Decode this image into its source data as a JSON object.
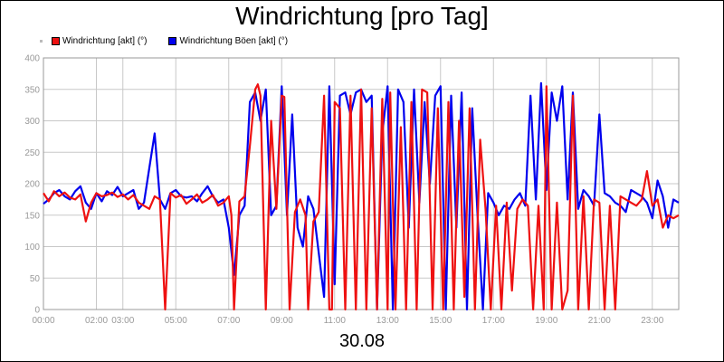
{
  "chart_data": {
    "type": "line",
    "title": "Windrichtung [pro Tag]",
    "xlabel": "30.08",
    "ylabel": "",
    "ylim": [
      0,
      400
    ],
    "yticks": [
      0,
      50,
      100,
      150,
      200,
      250,
      300,
      350,
      400
    ],
    "xlim": [
      0,
      24
    ],
    "xticks": [
      0,
      2,
      3,
      5,
      7,
      9,
      11,
      13,
      15,
      17,
      19,
      21,
      23
    ],
    "xtick_labels": [
      "00:00",
      "02:00",
      "03:00",
      "05:00",
      "07:00",
      "09:00",
      "11:00",
      "13:00",
      "15:00",
      "17:00",
      "19:00",
      "21:00",
      "23:00"
    ],
    "grid": true,
    "legend_position": "top-left",
    "series": [
      {
        "name": "Windrichtung [akt] (°)",
        "color": "#ee1111",
        "x": [
          0,
          0.2,
          0.4,
          0.6,
          0.8,
          1.0,
          1.2,
          1.4,
          1.6,
          1.8,
          2.0,
          2.2,
          2.4,
          2.6,
          2.8,
          3.0,
          3.2,
          3.4,
          3.6,
          3.8,
          4.0,
          4.2,
          4.4,
          4.6,
          4.8,
          5.0,
          5.2,
          5.4,
          5.6,
          5.8,
          6.0,
          6.2,
          6.4,
          6.6,
          6.8,
          7.0,
          7.1,
          7.2,
          7.4,
          7.6,
          7.8,
          8.0,
          8.1,
          8.2,
          8.4,
          8.6,
          8.8,
          9.0,
          9.1,
          9.3,
          9.5,
          9.7,
          9.9,
          10.0,
          10.2,
          10.4,
          10.6,
          10.8,
          10.9,
          11.0,
          11.2,
          11.4,
          11.6,
          11.8,
          12.0,
          12.2,
          12.4,
          12.6,
          12.8,
          13.0,
          13.1,
          13.3,
          13.5,
          13.7,
          13.9,
          14.1,
          14.3,
          14.5,
          14.7,
          14.9,
          15.1,
          15.3,
          15.5,
          15.7,
          15.9,
          16.1,
          16.3,
          16.5,
          16.7,
          16.9,
          17.1,
          17.3,
          17.5,
          17.7,
          17.9,
          18.1,
          18.3,
          18.5,
          18.7,
          18.9,
          19.0,
          19.2,
          19.4,
          19.6,
          19.8,
          20.0,
          20.2,
          20.4,
          20.6,
          20.8,
          21.0,
          21.2,
          21.4,
          21.6,
          21.8,
          22.0,
          22.2,
          22.4,
          22.6,
          22.8,
          23.0,
          23.2,
          23.4,
          23.6,
          23.8,
          24.0
        ],
        "y": [
          185,
          172,
          188,
          180,
          186,
          178,
          175,
          183,
          140,
          170,
          185,
          180,
          182,
          186,
          179,
          183,
          175,
          182,
          170,
          165,
          160,
          180,
          175,
          0,
          185,
          178,
          182,
          168,
          175,
          183,
          170,
          175,
          182,
          165,
          170,
          180,
          150,
          0,
          172,
          180,
          260,
          350,
          358,
          340,
          0,
          300,
          160,
          340,
          338,
          0,
          155,
          175,
          150,
          0,
          140,
          155,
          340,
          0,
          0,
          330,
          320,
          0,
          340,
          0,
          350,
          0,
          320,
          0,
          335,
          0,
          345,
          0,
          290,
          0,
          330,
          0,
          350,
          345,
          0,
          320,
          0,
          330,
          0,
          300,
          20,
          320,
          0,
          270,
          160,
          0,
          165,
          0,
          170,
          30,
          160,
          175,
          165,
          0,
          165,
          0,
          355,
          0,
          170,
          0,
          30,
          340,
          0,
          180,
          0,
          175,
          170,
          0,
          165,
          0,
          180,
          175,
          170,
          165,
          175,
          220,
          165,
          175,
          130,
          150,
          145,
          150
        ]
      },
      {
        "name": "Windrichtung Böen [akt] (°)",
        "color": "#0000ee",
        "x": [
          0,
          0.2,
          0.4,
          0.6,
          0.8,
          1.0,
          1.2,
          1.4,
          1.6,
          1.8,
          2.0,
          2.2,
          2.4,
          2.6,
          2.8,
          3.0,
          3.2,
          3.4,
          3.6,
          3.8,
          4.0,
          4.2,
          4.4,
          4.6,
          4.8,
          5.0,
          5.2,
          5.4,
          5.6,
          5.8,
          6.0,
          6.2,
          6.4,
          6.6,
          6.8,
          7.0,
          7.2,
          7.4,
          7.6,
          7.8,
          8.0,
          8.2,
          8.4,
          8.6,
          8.8,
          9.0,
          9.2,
          9.4,
          9.6,
          9.8,
          10.0,
          10.2,
          10.4,
          10.6,
          10.8,
          11.0,
          11.2,
          11.4,
          11.6,
          11.8,
          12.0,
          12.2,
          12.4,
          12.6,
          12.8,
          13.0,
          13.2,
          13.4,
          13.6,
          13.8,
          14.0,
          14.2,
          14.4,
          14.6,
          14.8,
          15.0,
          15.2,
          15.4,
          15.6,
          15.8,
          16.0,
          16.2,
          16.4,
          16.6,
          16.8,
          17.0,
          17.2,
          17.4,
          17.6,
          17.8,
          18.0,
          18.2,
          18.4,
          18.6,
          18.8,
          19.0,
          19.2,
          19.4,
          19.6,
          19.8,
          20.0,
          20.2,
          20.4,
          20.6,
          20.8,
          21.0,
          21.2,
          21.4,
          21.6,
          21.8,
          22.0,
          22.2,
          22.4,
          22.6,
          22.8,
          23.0,
          23.2,
          23.4,
          23.6,
          23.8,
          24.0
        ],
        "y": [
          168,
          175,
          185,
          190,
          180,
          175,
          188,
          196,
          170,
          160,
          185,
          172,
          188,
          182,
          195,
          180,
          185,
          190,
          160,
          170,
          225,
          280,
          175,
          160,
          185,
          190,
          180,
          178,
          180,
          172,
          185,
          196,
          180,
          170,
          175,
          130,
          55,
          150,
          165,
          330,
          345,
          300,
          350,
          150,
          165,
          355,
          150,
          310,
          130,
          100,
          180,
          160,
          90,
          20,
          355,
          40,
          340,
          345,
          310,
          345,
          350,
          330,
          340,
          0,
          280,
          355,
          0,
          350,
          330,
          130,
          350,
          170,
          330,
          200,
          340,
          355,
          0,
          340,
          130,
          345,
          0,
          320,
          150,
          0,
          185,
          170,
          150,
          165,
          160,
          175,
          185,
          165,
          340,
          175,
          360,
          190,
          345,
          300,
          355,
          175,
          345,
          160,
          190,
          180,
          165,
          310,
          185,
          180,
          170,
          165,
          155,
          190,
          185,
          180,
          170,
          145,
          205,
          180,
          130,
          175,
          170
        ]
      }
    ]
  }
}
